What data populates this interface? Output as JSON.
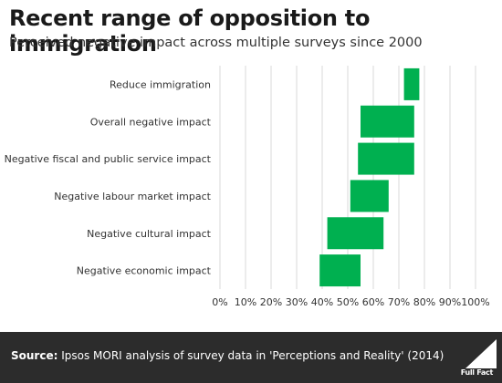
{
  "header": {
    "title": "Recent range of opposition to immigration",
    "subtitle": "Perceived negative impact across multiple surveys since 2000"
  },
  "footer": {
    "source_label": "Source:",
    "source_text": " Ipsos MORI analysis of survey data in 'Perceptions and Reality' (2014)",
    "logo_text": "Full Fact"
  },
  "colors": {
    "bar": "#00b050",
    "footer_bg": "#2c2c2c",
    "grid": "#d9d9d9"
  },
  "chart_data": {
    "type": "bar",
    "orientation": "horizontal",
    "title": "Recent range of opposition to immigration",
    "subtitle": "Perceived negative impact across multiple surveys since 2000",
    "categories": [
      "Reduce immigration",
      "Overall negative impact",
      "Negative fiscal and public service impact",
      "Negative labour market impact",
      "Negative cultural impact",
      "Negative economic impact"
    ],
    "ranges": [
      [
        72,
        78
      ],
      [
        55,
        76
      ],
      [
        54,
        76
      ],
      [
        51,
        66
      ],
      [
        42,
        64
      ],
      [
        39,
        55
      ]
    ],
    "xlim": [
      0,
      100
    ],
    "xticks": [
      "0%",
      "10%",
      "20%",
      "30%",
      "40%",
      "50%",
      "60%",
      "70%",
      "80%",
      "90%",
      "100%"
    ],
    "grid": true,
    "legend": "none"
  }
}
